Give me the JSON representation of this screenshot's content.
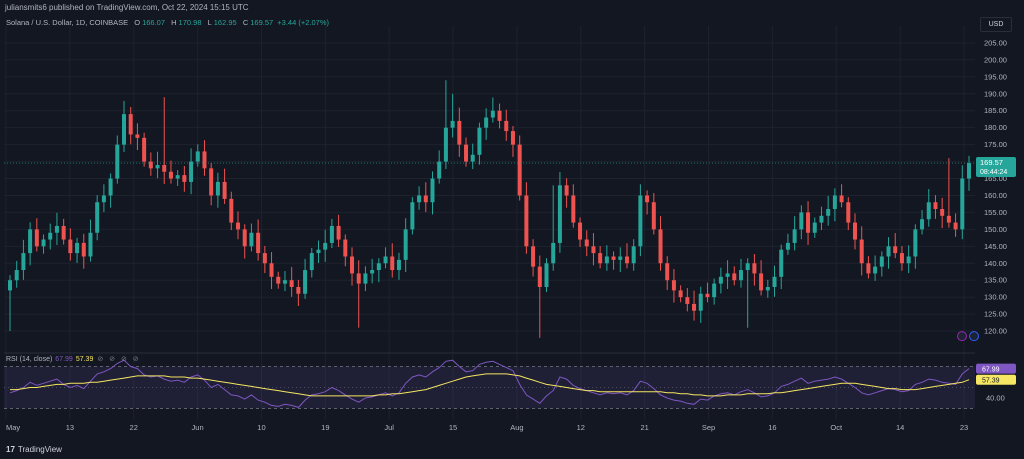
{
  "header": {
    "publisher_line": "juliansmits6 published on TradingView.com, Oct 22, 2024 15:15 UTC"
  },
  "legend": {
    "symbol": "Solana / U.S. Dollar, 1D, COINBASE",
    "open_label": "O",
    "open": "166.07",
    "high_label": "H",
    "high": "170.98",
    "low_label": "L",
    "low": "162.95",
    "close_label": "C",
    "close": "169.57",
    "change": "+3.44 (+2.07%)"
  },
  "currency_button": "USD",
  "price_tag": {
    "price": "169.57",
    "countdown": "08:44:24"
  },
  "rsi_legend": {
    "label": "RSI (14, close)",
    "rsi_value": "67.99",
    "ma_value": "57.39",
    "icons": "⊘ ⊘ ⊘ ⊘"
  },
  "footer": {
    "brand": "TradingView",
    "logo_glyph": "17"
  },
  "colors": {
    "background": "#131722",
    "up": "#26a69a",
    "down": "#ef5350",
    "rsi": "#7e57c2",
    "rsi_ma": "#f5e663",
    "grid": "#1e222d"
  },
  "chart_data": [
    {
      "type": "candlestick",
      "title": "Solana / U.S. Dollar, 1D, COINBASE",
      "ylim": [
        115,
        210
      ],
      "y_ticks": [
        120,
        125,
        130,
        135,
        140,
        145,
        150,
        155,
        160,
        165,
        170,
        175,
        180,
        185,
        190,
        195,
        200,
        205
      ],
      "x_tick_labels": [
        "May",
        "13",
        "22",
        "Jun",
        "10",
        "19",
        "Jul",
        "15",
        "Aug",
        "12",
        "21",
        "Sep",
        "16",
        "Oct",
        "14",
        "23"
      ],
      "closes": [
        135,
        138,
        143,
        150,
        145,
        147,
        149,
        151,
        147,
        143,
        146,
        142,
        149,
        158,
        160,
        165,
        175,
        184,
        178,
        177,
        170,
        168,
        169,
        167,
        165,
        166,
        164,
        170,
        173,
        168,
        160,
        164,
        159,
        152,
        150,
        145,
        149,
        143,
        140,
        136,
        134,
        135,
        133,
        131,
        138,
        143,
        144,
        146,
        151,
        147,
        142,
        137,
        134,
        137,
        138,
        140,
        142,
        138,
        141,
        150,
        158,
        160,
        158,
        165,
        170,
        180,
        182,
        175,
        170,
        172,
        180,
        183,
        185,
        182,
        179,
        175,
        160,
        145,
        139,
        133,
        140,
        146,
        163,
        160,
        152,
        147,
        145,
        143,
        140,
        142,
        141,
        142,
        140,
        145,
        160,
        158,
        150,
        140,
        135,
        132,
        130,
        128,
        126,
        131,
        130,
        134,
        136,
        137,
        135,
        138,
        140,
        137,
        132,
        133,
        136,
        144,
        146,
        150,
        155,
        149,
        152,
        154,
        156,
        160,
        158,
        152,
        147,
        140,
        137,
        139,
        142,
        145,
        143,
        140,
        142,
        150,
        153,
        158,
        156,
        154,
        152,
        150,
        165,
        169.57
      ],
      "wick_anchor_highs": [
        {
          "day": 23,
          "high": 189
        },
        {
          "day": 65,
          "high": 194
        },
        {
          "day": 66,
          "high": 190
        },
        {
          "day": 81,
          "high": 163
        },
        {
          "day": 140,
          "high": 171
        }
      ],
      "wick_anchor_lows": [
        {
          "day": 0,
          "low": 120
        },
        {
          "day": 52,
          "low": 121
        },
        {
          "day": 79,
          "low": 118
        },
        {
          "day": 110,
          "low": 121
        }
      ],
      "current_price": 169.57
    },
    {
      "type": "line",
      "title": "RSI (14, close)",
      "ylim": [
        20,
        80
      ],
      "y_ticks": [
        40
      ],
      "bands": [
        30,
        70
      ],
      "series": [
        {
          "name": "RSI",
          "values": [
            45,
            47,
            50,
            55,
            52,
            54,
            56,
            58,
            53,
            50,
            52,
            49,
            56,
            63,
            65,
            68,
            73,
            76,
            70,
            68,
            62,
            60,
            61,
            58,
            56,
            57,
            55,
            60,
            62,
            57,
            50,
            53,
            48,
            43,
            42,
            39,
            43,
            38,
            36,
            33,
            32,
            34,
            33,
            31,
            38,
            43,
            44,
            46,
            50,
            47,
            43,
            39,
            36,
            40,
            41,
            43,
            45,
            42,
            45,
            54,
            60,
            62,
            60,
            65,
            69,
            75,
            76,
            70,
            65,
            66,
            72,
            74,
            75,
            72,
            69,
            66,
            53,
            43,
            39,
            35,
            42,
            47,
            60,
            58,
            52,
            49,
            47,
            45,
            43,
            45,
            44,
            45,
            43,
            47,
            56,
            54,
            49,
            43,
            40,
            38,
            37,
            35,
            34,
            39,
            38,
            42,
            44,
            45,
            43,
            46,
            48,
            45,
            41,
            42,
            45,
            51,
            53,
            56,
            59,
            54,
            56,
            57,
            58,
            60,
            58,
            54,
            50,
            45,
            43,
            45,
            47,
            49,
            48,
            46,
            47,
            53,
            55,
            58,
            57,
            55,
            54,
            53,
            63,
            67.99
          ]
        },
        {
          "name": "RSI-based MA",
          "values": [
            48,
            48,
            49,
            50,
            50,
            51,
            52,
            53,
            53,
            54,
            54,
            54,
            55,
            55,
            56,
            57,
            58,
            59,
            60,
            61,
            61,
            61,
            61,
            61,
            60,
            60,
            60,
            59,
            59,
            58,
            57,
            56,
            55,
            54,
            53,
            52,
            51,
            50,
            49,
            48,
            47,
            46,
            45,
            44,
            43,
            42,
            42,
            42,
            42,
            42,
            42,
            42,
            42,
            42,
            42,
            43,
            43,
            44,
            44,
            45,
            46,
            47,
            48,
            50,
            52,
            54,
            56,
            58,
            60,
            61,
            62,
            63,
            63,
            63,
            63,
            62,
            61,
            59,
            57,
            55,
            53,
            52,
            51,
            50,
            49,
            48,
            47,
            47,
            46,
            46,
            46,
            46,
            46,
            46,
            46,
            46,
            46,
            46,
            45,
            45,
            44,
            44,
            43,
            43,
            42,
            42,
            42,
            43,
            43,
            43,
            44,
            44,
            44,
            44,
            45,
            45,
            46,
            47,
            48,
            49,
            50,
            51,
            52,
            53,
            54,
            54,
            54,
            53,
            52,
            51,
            50,
            49,
            49,
            48,
            48,
            48,
            49,
            50,
            51,
            52,
            53,
            54,
            55,
            57.39
          ]
        }
      ]
    }
  ]
}
